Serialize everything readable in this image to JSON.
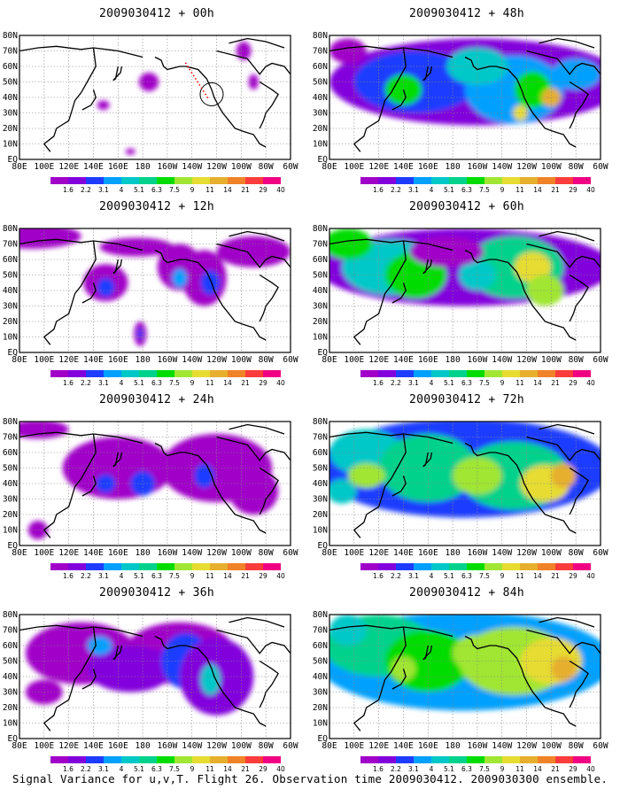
{
  "panels": [
    {
      "title": "2009030412 + 00h"
    },
    {
      "title": "2009030412 + 48h"
    },
    {
      "title": "2009030412 + 12h"
    },
    {
      "title": "2009030412 + 60h"
    },
    {
      "title": "2009030412 + 24h"
    },
    {
      "title": "2009030412 + 72h"
    },
    {
      "title": "2009030412 + 36h"
    },
    {
      "title": "2009030412 + 84h"
    }
  ],
  "x_axis_labels": [
    "80E",
    "100E",
    "120E",
    "140E",
    "160E",
    "180",
    "160W",
    "140W",
    "120W",
    "100W",
    "80W",
    "60W"
  ],
  "y_axis_labels": [
    "EQ",
    "10N",
    "20N",
    "30N",
    "40N",
    "50N",
    "60N",
    "70N",
    "80N"
  ],
  "colorbar": {
    "labels": [
      "1.6",
      "2.2",
      "3.1",
      "4",
      "5.1",
      "6.3",
      "7.5",
      "9",
      "11",
      "14",
      "21",
      "29",
      "40"
    ],
    "colors": [
      "#a000c8",
      "#8200dc",
      "#1e3cff",
      "#00a0ff",
      "#00c8c8",
      "#00d28c",
      "#00dc00",
      "#a0e632",
      "#e6dc32",
      "#e6af2d",
      "#f08228",
      "#fa3c3c",
      "#f00082"
    ]
  },
  "caption": "Signal Variance for u,v,T. Flight 26. Observation time 2009030412. 2009030300 ensemble."
}
